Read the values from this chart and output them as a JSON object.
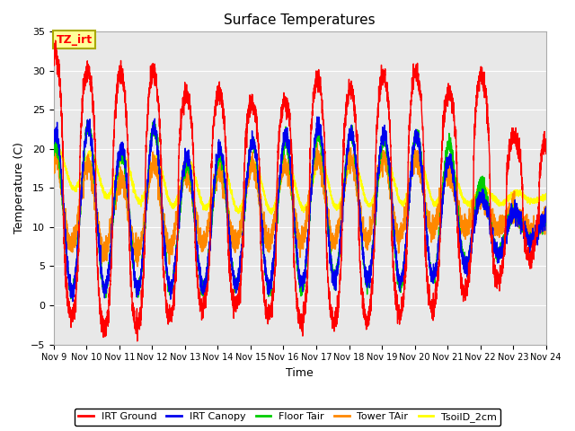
{
  "title": "Surface Temperatures",
  "xlabel": "Time",
  "ylabel": "Temperature (C)",
  "ylim": [
    -5,
    35
  ],
  "x_tick_labels": [
    "Nov 9",
    "Nov 10",
    "Nov 11",
    "Nov 12",
    "Nov 13",
    "Nov 14",
    "Nov 15",
    "Nov 16",
    "Nov 17",
    "Nov 18",
    "Nov 19",
    "Nov 20",
    "Nov 21",
    "Nov 22",
    "Nov 23",
    "Nov 24"
  ],
  "annotation_text": "TZ_irt",
  "annotation_box_facecolor": "#ffff99",
  "annotation_box_edgecolor": "#aaaa00",
  "bg_color": "#e8e8e8",
  "series": [
    {
      "label": "IRT Ground",
      "color": "#ff0000"
    },
    {
      "label": "IRT Canopy",
      "color": "#0000ee"
    },
    {
      "label": "Floor Tair",
      "color": "#00cc00"
    },
    {
      "label": "Tower TAir",
      "color": "#ff8800"
    },
    {
      "label": "TsoilD_2cm",
      "color": "#ffff00"
    }
  ],
  "irt_ground_peaks": [
    32.5,
    30.0,
    29.5,
    30.0,
    27.0,
    27.0,
    26.0,
    26.0,
    29.0,
    27.5,
    29.5,
    30.0,
    27.0,
    30.0,
    21.5,
    21.0
  ],
  "irt_ground_mins": [
    -1.0,
    -2.0,
    -4.0,
    -2.0,
    -1.0,
    0.0,
    0.0,
    -2.5,
    -2.0,
    -2.5,
    -1.5,
    -1.0,
    0.0,
    3.0,
    3.0,
    9.0
  ],
  "irt_canopy_peaks": [
    22.0,
    23.0,
    20.0,
    23.0,
    19.0,
    20.0,
    21.0,
    21.5,
    23.0,
    22.0,
    22.0,
    22.0,
    19.0,
    14.0,
    12.0,
    11.0
  ],
  "irt_canopy_mins": [
    1.0,
    2.0,
    2.0,
    2.0,
    2.0,
    2.0,
    3.0,
    2.0,
    3.0,
    3.5,
    3.0,
    3.0,
    4.0,
    6.0,
    7.0,
    9.0
  ],
  "floor_tair_peaks": [
    20.0,
    23.0,
    19.0,
    23.0,
    18.0,
    19.0,
    21.0,
    21.0,
    22.0,
    22.0,
    21.0,
    22.0,
    21.0,
    16.0,
    12.0,
    11.0
  ],
  "floor_tair_mins": [
    1.0,
    2.0,
    2.0,
    2.0,
    2.0,
    2.0,
    3.0,
    1.0,
    3.0,
    4.0,
    2.0,
    3.0,
    4.0,
    6.0,
    7.0,
    9.0
  ],
  "tower_tair_peaks": [
    19.0,
    18.0,
    16.0,
    18.0,
    17.0,
    17.0,
    18.0,
    18.0,
    19.0,
    18.5,
    19.0,
    19.0,
    17.0,
    14.0,
    12.0,
    11.0
  ],
  "tower_tair_mins": [
    8.0,
    7.0,
    6.0,
    7.0,
    8.0,
    8.0,
    8.0,
    8.0,
    8.0,
    8.0,
    8.5,
    9.0,
    10.0,
    10.0,
    9.5,
    9.0
  ],
  "tsoil_peaks": [
    20.0,
    19.5,
    19.0,
    19.0,
    18.0,
    18.0,
    18.0,
    18.0,
    18.5,
    18.5,
    18.5,
    19.0,
    17.5,
    15.0,
    14.5,
    14.0
  ],
  "tsoil_mins": [
    15.5,
    14.5,
    13.5,
    13.0,
    12.5,
    12.5,
    12.0,
    12.0,
    12.5,
    12.5,
    13.0,
    13.0,
    13.0,
    13.0,
    13.0,
    13.5
  ]
}
